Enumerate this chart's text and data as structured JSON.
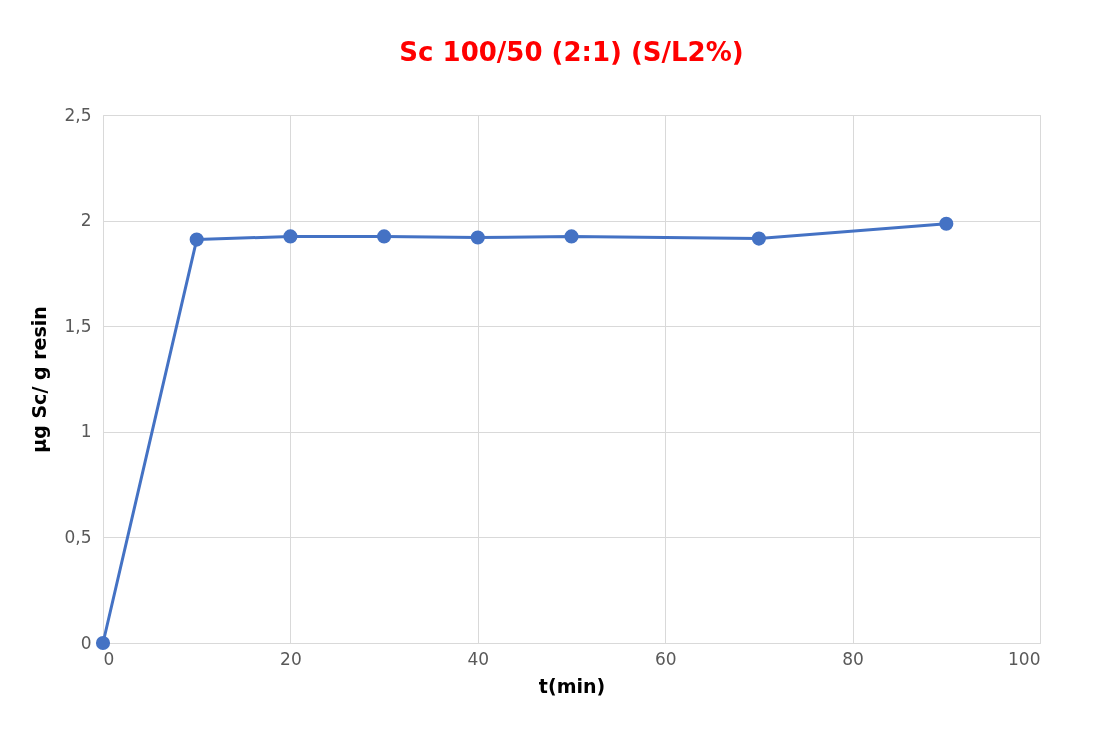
{
  "chart_data": {
    "type": "line",
    "title": "Sc 100/50 (2:1) (S/L2%)",
    "xlabel": "t(min)",
    "ylabel": "µg Sc/ g resin",
    "x": [
      0,
      10,
      20,
      30,
      40,
      50,
      70,
      90
    ],
    "series": [
      {
        "color": "#4472c4",
        "values": [
          0,
          1.91,
          1.925,
          1.925,
          1.92,
          1.925,
          1.915,
          1.985
        ]
      }
    ],
    "xlim": [
      0,
      100
    ],
    "xticks": [
      0,
      20,
      40,
      60,
      80,
      100
    ],
    "ylim": [
      0,
      2.5
    ],
    "yticks": [
      0,
      {
        "value": 0.5,
        "label": "0,5"
      },
      1,
      {
        "value": 1.5,
        "label": "1,5"
      },
      2,
      {
        "value": 2.5,
        "label": "2,5"
      }
    ],
    "grid": true,
    "marker": "circle",
    "line_style": "solid"
  }
}
